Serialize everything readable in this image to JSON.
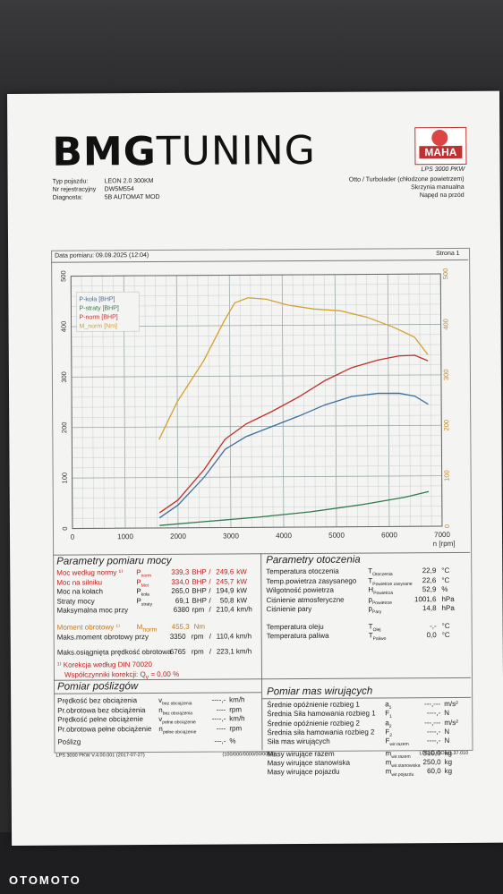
{
  "header": {
    "logo_bold": "BMG",
    "logo_light": "TUNING",
    "maha_logo": "MAHA",
    "maha_model": "LPS 3000 PKW",
    "typ_label": "Typ pojazdu:",
    "typ_value": "LEON 2.0 300KM",
    "nr_label": "Nr rejestracyjny",
    "nr_value": "DW5M554",
    "diag_label": "Diagnosta:",
    "diag_value": "5B AUTOMAT MOD",
    "engine": "Otto / Turbolader (chłodzone powietrzem)",
    "gearbox": "Skrzynia manualna",
    "drive": "Napęd na przód",
    "date": "Data pomiaru: 09.09.2025 (12:04)",
    "page": "Strona 1"
  },
  "chart_data": {
    "type": "line",
    "x_unit": "n [rpm]",
    "xlim": [
      0,
      7000
    ],
    "ylim_left": [
      0,
      500
    ],
    "ylim_right": [
      0,
      500
    ],
    "x_ticks": [
      "0",
      "1000",
      "2000",
      "3000",
      "4000",
      "5000",
      "6000",
      "7000"
    ],
    "y_ticks": [
      "0",
      "100",
      "200",
      "300",
      "400",
      "500"
    ],
    "legend": [
      "P-koła [BHP]",
      "P-straty [BHP]",
      "P-norm [BHP]",
      "M_norm [Nm]"
    ],
    "series": [
      {
        "name": "P-koła [BHP]",
        "color": "#3a6fa0",
        "x": [
          1650,
          2000,
          2500,
          2900,
          3300,
          3800,
          4300,
          4800,
          5300,
          5800,
          6200,
          6500,
          6750
        ],
        "y": [
          20,
          45,
          100,
          155,
          180,
          200,
          220,
          242,
          258,
          264,
          264,
          258,
          242
        ]
      },
      {
        "name": "P-straty [BHP]",
        "color": "#2e7a4a",
        "x": [
          1650,
          2500,
          3500,
          4500,
          5500,
          6300,
          6750
        ],
        "y": [
          5,
          12,
          20,
          30,
          44,
          58,
          69
        ]
      },
      {
        "name": "P-norm [BHP]",
        "color": "#c0302a",
        "x": [
          1650,
          2000,
          2500,
          2900,
          3300,
          3800,
          4300,
          4800,
          5300,
          5800,
          6200,
          6500,
          6750
        ],
        "y": [
          30,
          55,
          115,
          175,
          205,
          230,
          258,
          290,
          315,
          330,
          338,
          339,
          328
        ]
      },
      {
        "name": "M_norm [Nm]",
        "color": "#d4a030",
        "x": [
          1650,
          2000,
          2500,
          2900,
          3100,
          3350,
          3700,
          4100,
          4600,
          5100,
          5600,
          6100,
          6500,
          6750
        ],
        "y": [
          175,
          250,
          330,
          410,
          445,
          455,
          452,
          440,
          432,
          428,
          415,
          395,
          375,
          340
        ]
      }
    ]
  },
  "params": {
    "title": "Parametry pomiaru mocy",
    "rows": [
      {
        "label": "Moc według normy",
        "sym": "P",
        "sub": "norm",
        "v1": "339,3",
        "u1": "BHP",
        "v2": "249,6",
        "u2": "kW",
        "cls": "red",
        "mark": "¹⁾"
      },
      {
        "label": "Moc na silniku",
        "sym": "P",
        "sub": "Mot",
        "v1": "334,0",
        "u1": "BHP",
        "v2": "245,7",
        "u2": "kW",
        "cls": "red",
        "mark": ""
      },
      {
        "label": "Moc na kołach",
        "sym": "P",
        "sub": "koła",
        "v1": "265,0",
        "u1": "BHP",
        "v2": "194,9",
        "u2": "kW",
        "cls": "",
        "mark": ""
      },
      {
        "label": "Straty mocy",
        "sym": "P",
        "sub": "straty",
        "v1": "69,1",
        "u1": "BHP",
        "v2": "50,8",
        "u2": "kW",
        "cls": "",
        "mark": ""
      },
      {
        "label": "Maksymalna moc przy",
        "sym": "",
        "sub": "",
        "v1": "6380",
        "u1": "rpm",
        "v2": "210,4",
        "u2": "km/h",
        "cls": "",
        "mark": ""
      }
    ],
    "torque_label": "Moment obrotowy",
    "torque_mark": "¹⁾",
    "torque_sym": "M",
    "torque_sub": "norm",
    "torque_value": "455,3",
    "torque_unit": "Nm",
    "max_torque_label": "Maks.moment obrotowy przy",
    "max_torque_rpm": "3350",
    "max_torque_kmh": "110,4",
    "max_speed_label": "Maks.osiągnięta prędkość obrotowa",
    "max_speed_rpm": "6765",
    "max_speed_kmh": "223,1",
    "rpm": "rpm",
    "kmh": "km/h",
    "slash": "/",
    "korekcja": "¹⁾ Korekcja według DIN 70020",
    "wspolczynnik": "Współczynniki korekcji: Q",
    "wspolczynnik_sub": "v",
    "wspolczynnik_value": "=   0,00 %"
  },
  "ambient": {
    "title": "Parametry otoczenia",
    "rows": [
      {
        "label": "Temperatura otoczenia",
        "sym": "T",
        "sub": "Otoczenia",
        "val": "22,9",
        "unit": "°C"
      },
      {
        "label": "Temp.powietrza zasysanego",
        "sym": "T",
        "sub": "Powietrze zasysane",
        "val": "22,6",
        "unit": "°C"
      },
      {
        "label": "Wilgotność powietrza",
        "sym": "H",
        "sub": "Powietrza",
        "val": "52,9",
        "unit": "%"
      },
      {
        "label": "Ciśnienie atmosferyczne",
        "sym": "p",
        "sub": "Powietrze",
        "val": "1001,6",
        "unit": "hPa"
      },
      {
        "label": "Ciśnienie pary",
        "sym": "p",
        "sub": "Pary",
        "val": "14,8",
        "unit": "hPa"
      },
      {
        "label": "Temperatura oleju",
        "sym": "T",
        "sub": "Olej",
        "val": "-,-",
        "unit": "°C"
      },
      {
        "label": "Temperatura paliwa",
        "sym": "T",
        "sub": "Paliwo",
        "val": "0,0",
        "unit": "°C"
      }
    ]
  },
  "slip": {
    "title": "Pomiar poślizgów",
    "rows": [
      {
        "label": "Prędkość bez obciążenia",
        "sym": "v",
        "sub": "bez obciążenia",
        "val": "----,-",
        "unit": "km/h"
      },
      {
        "label": "Pr.obrotowa bez obciążenia",
        "sym": "n",
        "sub": "bez obciążenia",
        "val": "----",
        "unit": "rpm"
      },
      {
        "label": "Prędkość pełne obciążenie",
        "sym": "v",
        "sub": "pełne obciążenie",
        "val": "----,-",
        "unit": "km/h"
      },
      {
        "label": "Pr.obrotowa pełne obciążenie",
        "sym": "n",
        "sub": "pełne obciążenie",
        "val": "----",
        "unit": "rpm"
      },
      {
        "label": "Poślizg",
        "sym": "",
        "sub": "",
        "val": "---,-",
        "unit": "%"
      }
    ]
  },
  "mass": {
    "title": "Pomiar mas wirujących",
    "rows": [
      {
        "label": "Średnie opóźnienie rozbieg 1",
        "sym": "a",
        "sub": "1",
        "val": "---,---",
        "unit": "m/s²"
      },
      {
        "label": "Średnia Siła hamowania rozbieg 1",
        "sym": "F",
        "sub": "1",
        "val": "----,-",
        "unit": "N"
      },
      {
        "label": "Średnie opóźnienie rozbieg 2",
        "sym": "a",
        "sub": "2",
        "val": "---,---",
        "unit": "m/s²"
      },
      {
        "label": "Średnia siła hamowania rozbieg 2",
        "sym": "F",
        "sub": "2",
        "val": "----,-",
        "unit": "N"
      },
      {
        "label": "Siła mas wirujących",
        "sym": "F",
        "sub": "wir.razem",
        "val": "----,-",
        "unit": "N"
      },
      {
        "label": "Masy wirujące razem",
        "sym": "m",
        "sub": "wir.razem",
        "val": "310,0",
        "unit": "kg"
      },
      {
        "label": "Masy wirujące stanowiska",
        "sym": "m",
        "sub": "wir.stanowiska",
        "val": "250,0",
        "unit": "kg"
      },
      {
        "label": "Masy wirujące pojazdu",
        "sym": "m",
        "sub": "wir.pojazdu",
        "val": "60,0",
        "unit": "kg"
      }
    ]
  },
  "footer": {
    "left": "LPS 3000 PKW V.4.00.001 (2017-07-27)",
    "center": "(100/000/0000/00/0000)",
    "right": "LPS-EURO V1.37.010"
  },
  "watermark": "OTOMOTO"
}
